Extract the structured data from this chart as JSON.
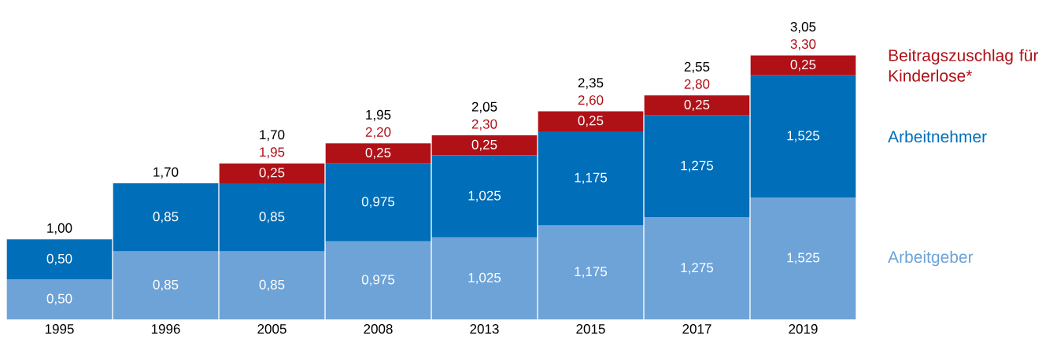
{
  "chart_data": {
    "type": "bar",
    "stacked": true,
    "categories": [
      "1995",
      "1996",
      "2005",
      "2008",
      "2013",
      "2015",
      "2017",
      "2019"
    ],
    "legend": "right",
    "tick_labels": "x",
    "series": [
      {
        "name": "Arbeitgeber",
        "color": "#6ea3d8",
        "values": [
          0.5,
          0.85,
          0.85,
          0.975,
          1.025,
          1.175,
          1.275,
          1.525
        ],
        "value_labels": [
          "0,50",
          "0,85",
          "0,85",
          "0,975",
          "1,025",
          "1,175",
          "1,275",
          "1,525"
        ]
      },
      {
        "name": "Arbeitnehmer",
        "color": "#006eb8",
        "values": [
          0.5,
          0.85,
          0.85,
          0.975,
          1.025,
          1.175,
          1.275,
          1.525
        ],
        "value_labels": [
          "0,50",
          "0,85",
          "0,85",
          "0,975",
          "1,025",
          "1,175",
          "1,275",
          "1,525"
        ]
      },
      {
        "name": "Beitragszuschlag für Kinderlose*",
        "color": "#b01117",
        "values": [
          null,
          null,
          0.25,
          0.25,
          0.25,
          0.25,
          0.25,
          0.25
        ],
        "value_labels": [
          null,
          null,
          "0,25",
          "0,25",
          "0,25",
          "0,25",
          "0,25",
          "0,25"
        ]
      }
    ],
    "totals": [
      "1,00",
      "1,70",
      "1,95",
      "2,20",
      "2,30",
      "2,60",
      "2,80",
      "3,30"
    ],
    "annotations": [
      "1,70",
      "1,95",
      "2,05",
      "2,35",
      "2,55",
      "3,05"
    ]
  }
}
